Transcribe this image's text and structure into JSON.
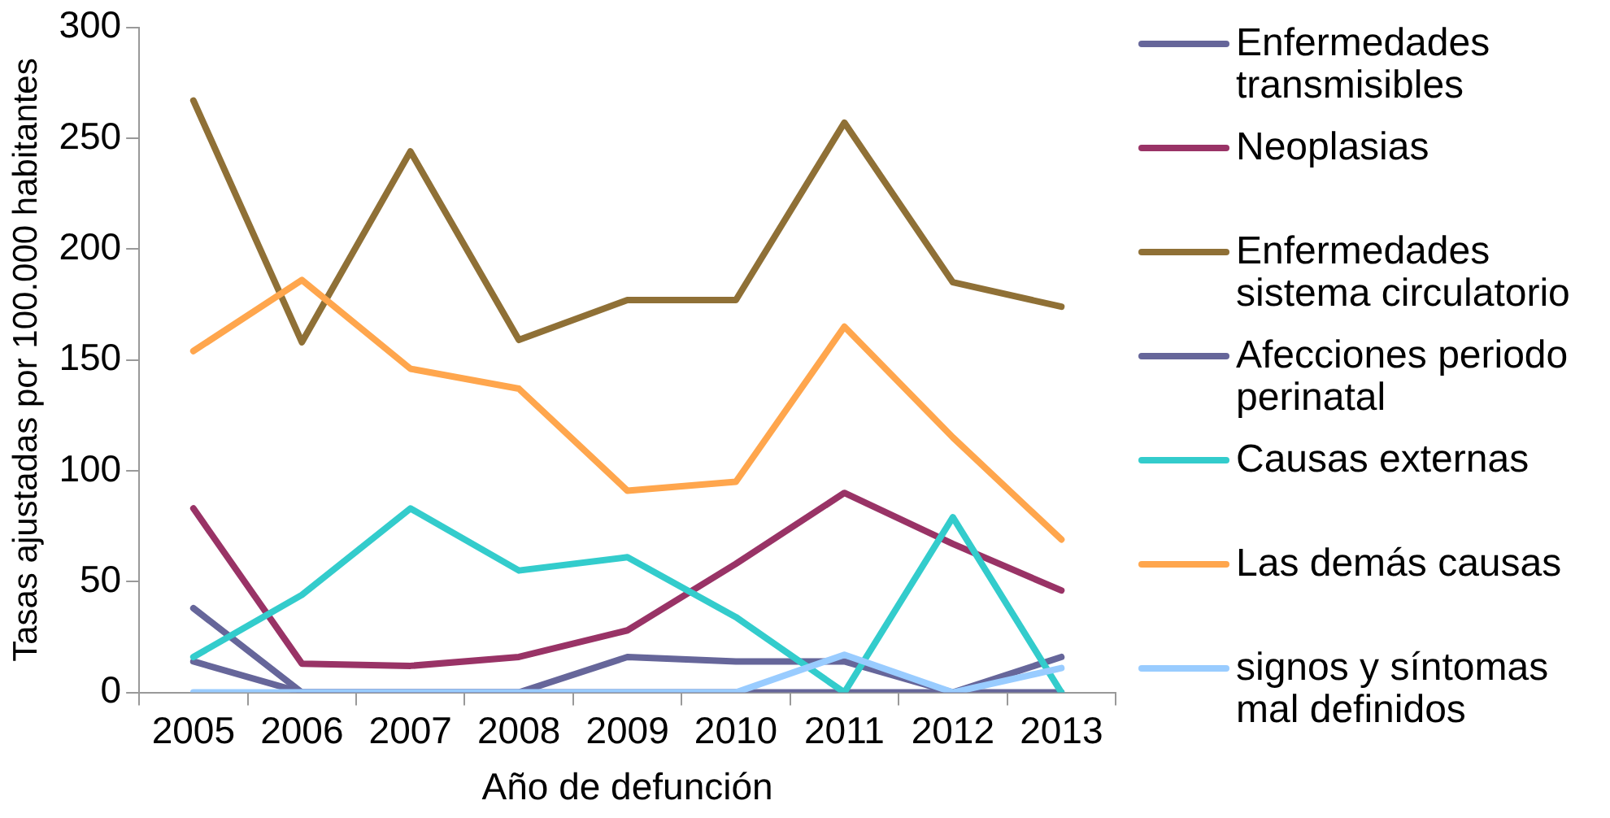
{
  "chart_data": {
    "type": "line",
    "xlabel": "Año de defunción",
    "ylabel": "Tasas ajustadas por 100.000 habitantes",
    "categories": [
      "2005",
      "2006",
      "2007",
      "2008",
      "2009",
      "2010",
      "2011",
      "2012",
      "2013"
    ],
    "series": [
      {
        "name": "Enfermedades transmisibles",
        "color": "#66669a",
        "values": [
          14,
          0,
          0,
          0,
          16,
          14,
          14,
          0,
          16
        ]
      },
      {
        "name": "Neoplasias",
        "color": "#993366",
        "values": [
          83,
          13,
          12,
          16,
          28,
          58,
          90,
          67,
          46
        ]
      },
      {
        "name": "Enfermedades sistema circulatorio",
        "color": "#8f7036",
        "values": [
          267,
          158,
          244,
          159,
          177,
          177,
          257,
          185,
          174
        ]
      },
      {
        "name": "Afecciones periodo perinatal",
        "color": "#66669a",
        "values": [
          38,
          0,
          0,
          0,
          0,
          0,
          0,
          0,
          0
        ]
      },
      {
        "name": "Causas externas",
        "color": "#33cccc",
        "values": [
          16,
          44,
          83,
          55,
          61,
          34,
          0,
          79,
          0
        ]
      },
      {
        "name": "Las demás causas",
        "color": "#ffa64d",
        "values": [
          154,
          186,
          146,
          137,
          91,
          95,
          165,
          115,
          69
        ]
      },
      {
        "name": "signos y síntomas mal definidos",
        "color": "#99ccff",
        "values": [
          0,
          0,
          0,
          0,
          0,
          0,
          17,
          0,
          11
        ]
      }
    ],
    "ylim": [
      0,
      300
    ],
    "yticks": [
      0,
      50,
      100,
      150,
      200,
      250,
      300
    ],
    "grid": false,
    "legend": "right",
    "marker": "none",
    "line_style": "solid"
  }
}
